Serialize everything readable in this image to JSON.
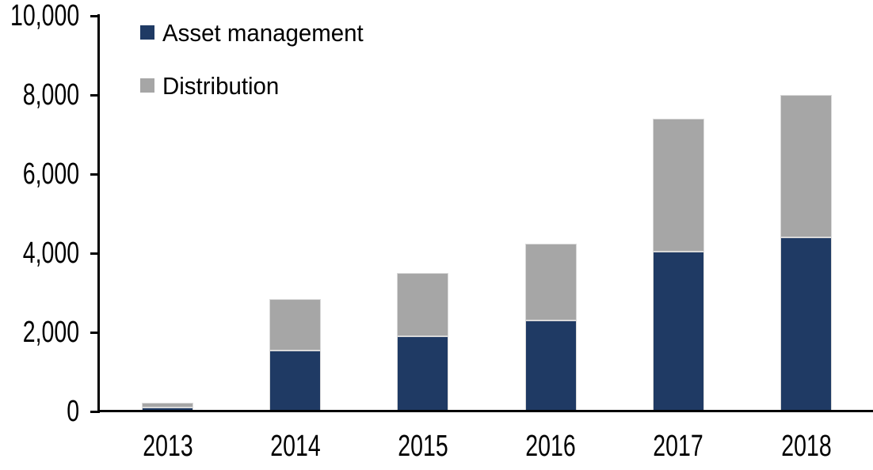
{
  "chart_data": {
    "type": "bar",
    "stacked": true,
    "title": "",
    "xlabel": "",
    "ylabel": "",
    "categories": [
      "2013",
      "2014",
      "2015",
      "2016",
      "2017",
      "2018"
    ],
    "series": [
      {
        "name": "Asset management",
        "color": "#1f3a64",
        "values": [
          100,
          1550,
          1900,
          2300,
          4050,
          4400
        ]
      },
      {
        "name": "Distribution",
        "color": "#a6a6a6",
        "values": [
          120,
          1300,
          1600,
          1950,
          3350,
          3600
        ]
      }
    ],
    "ylim": [
      0,
      10000
    ],
    "y_ticks": [
      {
        "value": 0,
        "label": "0"
      },
      {
        "value": 2000,
        "label": "2,000"
      },
      {
        "value": 4000,
        "label": "4,000"
      },
      {
        "value": 6000,
        "label": "6,000"
      },
      {
        "value": 8000,
        "label": "8,000"
      },
      {
        "value": 10000,
        "label": "10,000"
      }
    ],
    "grid": false,
    "legend_position": "inside-top-left"
  },
  "colors": {
    "background": "#ffffff",
    "axis": "#000000",
    "text": "#000000",
    "bar_border": "#d9d9d9",
    "asset_management": "#1f3a64",
    "distribution": "#a6a6a6"
  }
}
